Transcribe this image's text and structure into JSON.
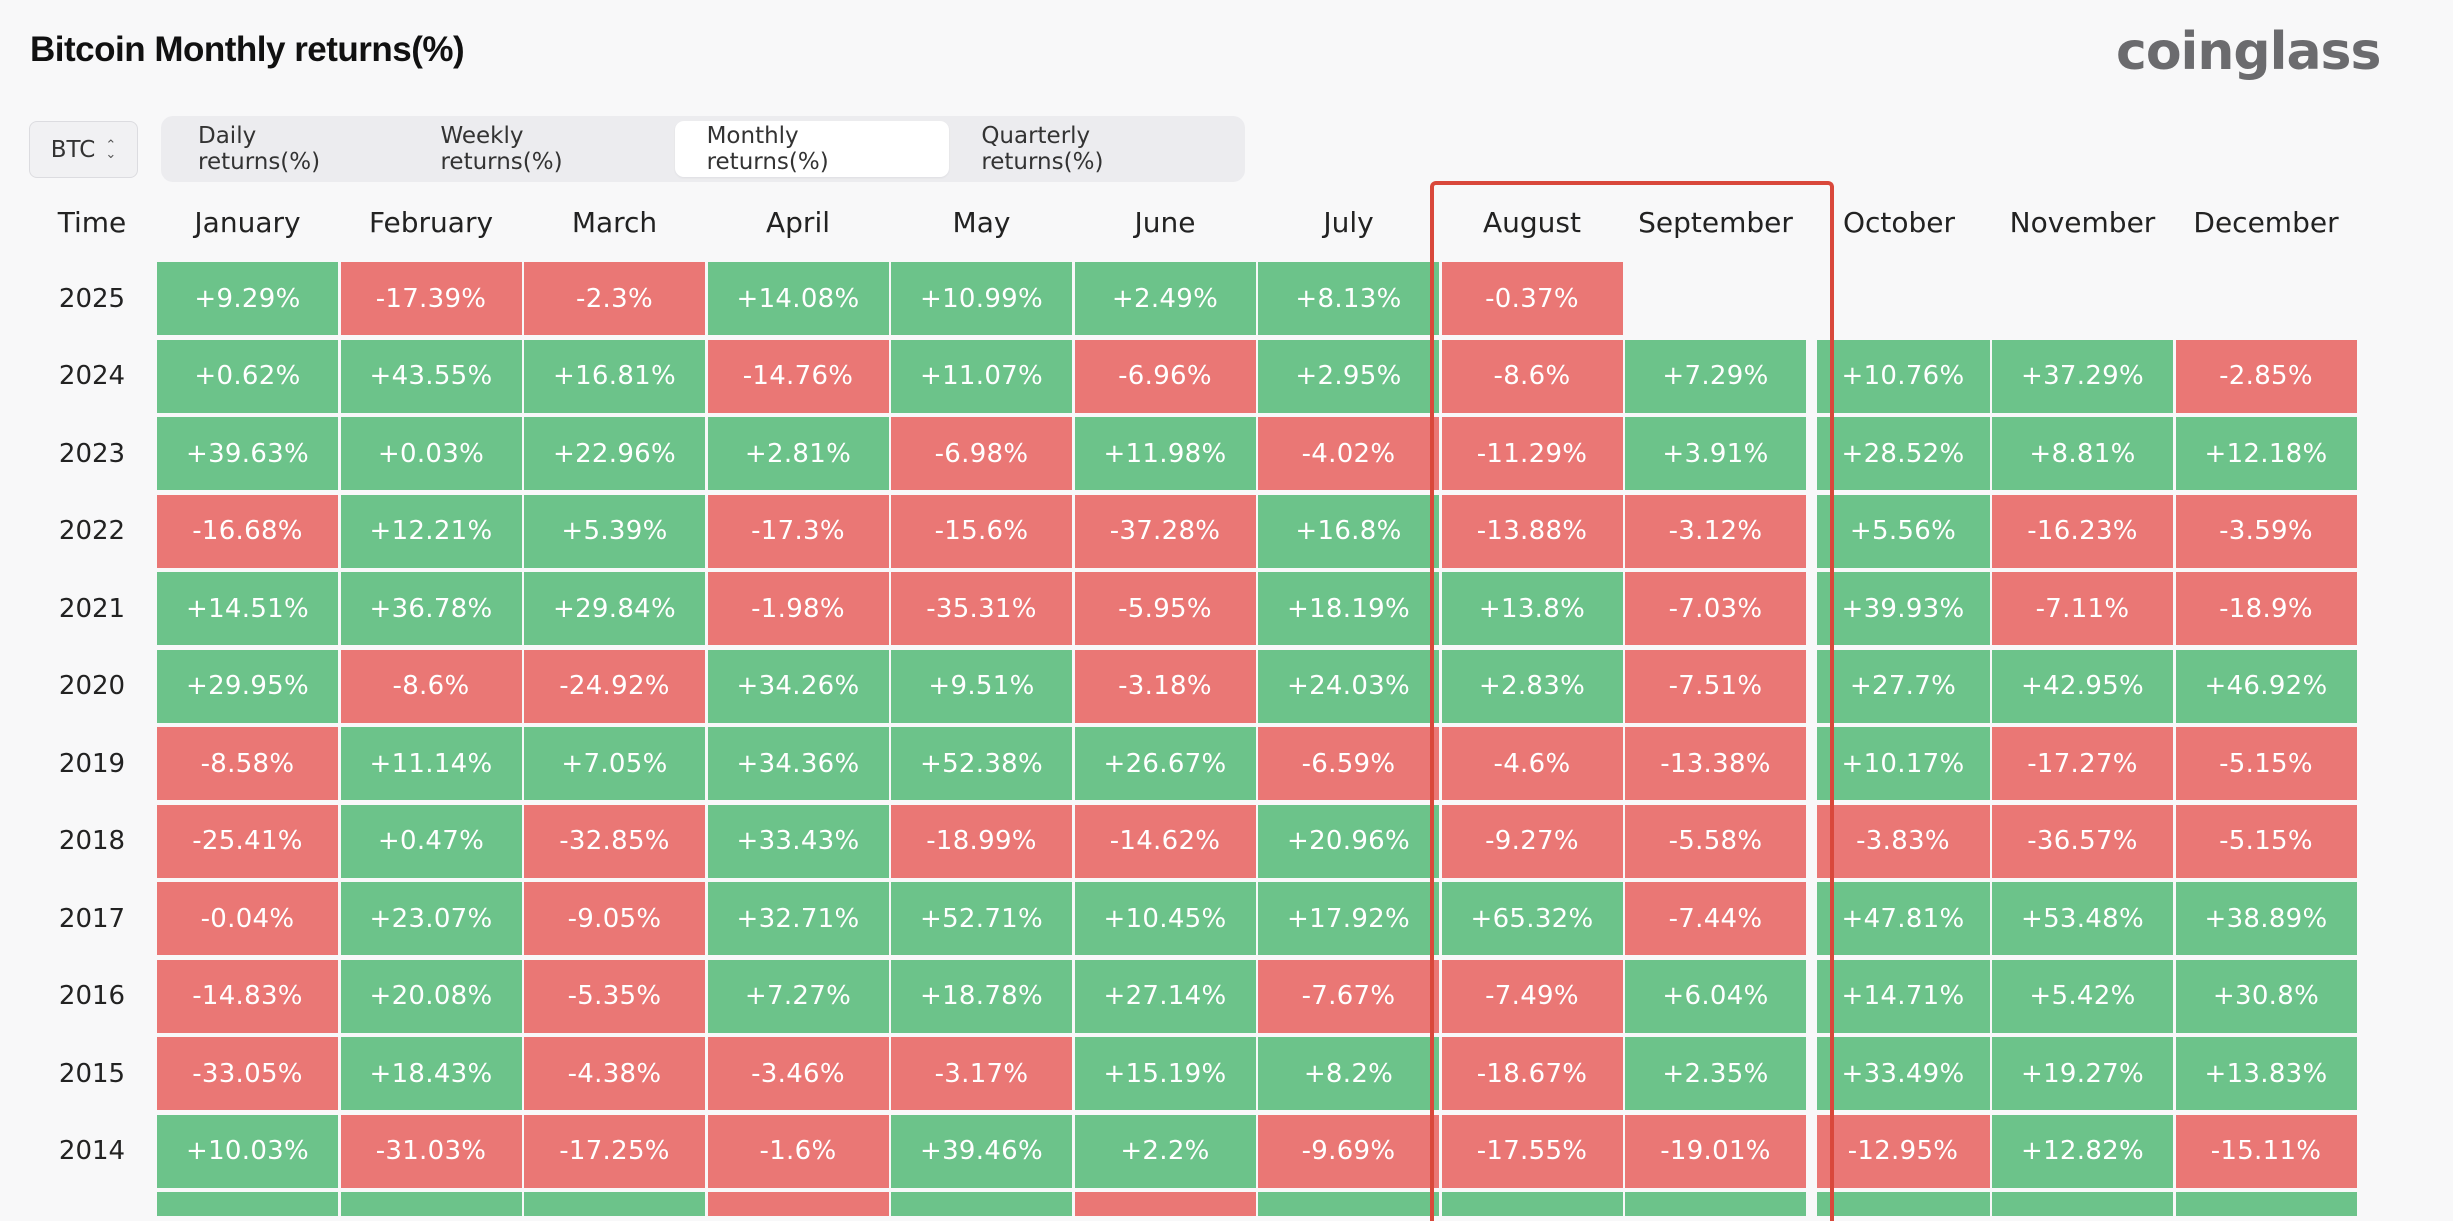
{
  "header": {
    "title": "Bitcoin Monthly returns(%)",
    "brand": "coinglass"
  },
  "asset_select": {
    "value": "BTC"
  },
  "tabs": [
    {
      "label": "Daily returns(%)",
      "active": false
    },
    {
      "label": "Weekly returns(%)",
      "active": false
    },
    {
      "label": "Monthly returns(%)",
      "active": true
    },
    {
      "label": "Quarterly returns(%)",
      "active": false
    }
  ],
  "table": {
    "time_label": "Time",
    "months": [
      "January",
      "February",
      "March",
      "April",
      "May",
      "June",
      "July",
      "August",
      "September",
      "October",
      "November",
      "December"
    ],
    "highlighted_months": [
      "August",
      "September"
    ],
    "rows": [
      {
        "year": "2025",
        "values": [
          "+9.29%",
          "-17.39%",
          "-2.3%",
          "+14.08%",
          "+10.99%",
          "+2.49%",
          "+8.13%",
          "-0.37%",
          "",
          "",
          "",
          ""
        ]
      },
      {
        "year": "2024",
        "values": [
          "+0.62%",
          "+43.55%",
          "+16.81%",
          "-14.76%",
          "+11.07%",
          "-6.96%",
          "+2.95%",
          "-8.6%",
          "+7.29%",
          "+10.76%",
          "+37.29%",
          "-2.85%"
        ]
      },
      {
        "year": "2023",
        "values": [
          "+39.63%",
          "+0.03%",
          "+22.96%",
          "+2.81%",
          "-6.98%",
          "+11.98%",
          "-4.02%",
          "-11.29%",
          "+3.91%",
          "+28.52%",
          "+8.81%",
          "+12.18%"
        ]
      },
      {
        "year": "2022",
        "values": [
          "-16.68%",
          "+12.21%",
          "+5.39%",
          "-17.3%",
          "-15.6%",
          "-37.28%",
          "+16.8%",
          "-13.88%",
          "-3.12%",
          "+5.56%",
          "-16.23%",
          "-3.59%"
        ]
      },
      {
        "year": "2021",
        "values": [
          "+14.51%",
          "+36.78%",
          "+29.84%",
          "-1.98%",
          "-35.31%",
          "-5.95%",
          "+18.19%",
          "+13.8%",
          "-7.03%",
          "+39.93%",
          "-7.11%",
          "-18.9%"
        ]
      },
      {
        "year": "2020",
        "values": [
          "+29.95%",
          "-8.6%",
          "-24.92%",
          "+34.26%",
          "+9.51%",
          "-3.18%",
          "+24.03%",
          "+2.83%",
          "-7.51%",
          "+27.7%",
          "+42.95%",
          "+46.92%"
        ]
      },
      {
        "year": "2019",
        "values": [
          "-8.58%",
          "+11.14%",
          "+7.05%",
          "+34.36%",
          "+52.38%",
          "+26.67%",
          "-6.59%",
          "-4.6%",
          "-13.38%",
          "+10.17%",
          "-17.27%",
          "-5.15%"
        ]
      },
      {
        "year": "2018",
        "values": [
          "-25.41%",
          "+0.47%",
          "-32.85%",
          "+33.43%",
          "-18.99%",
          "-14.62%",
          "+20.96%",
          "-9.27%",
          "-5.58%",
          "-3.83%",
          "-36.57%",
          "-5.15%"
        ]
      },
      {
        "year": "2017",
        "values": [
          "-0.04%",
          "+23.07%",
          "-9.05%",
          "+32.71%",
          "+52.71%",
          "+10.45%",
          "+17.92%",
          "+65.32%",
          "-7.44%",
          "+47.81%",
          "+53.48%",
          "+38.89%"
        ]
      },
      {
        "year": "2016",
        "values": [
          "-14.83%",
          "+20.08%",
          "-5.35%",
          "+7.27%",
          "+18.78%",
          "+27.14%",
          "-7.67%",
          "-7.49%",
          "+6.04%",
          "+14.71%",
          "+5.42%",
          "+30.8%"
        ]
      },
      {
        "year": "2015",
        "values": [
          "-33.05%",
          "+18.43%",
          "-4.38%",
          "-3.46%",
          "-3.17%",
          "+15.19%",
          "+8.2%",
          "-18.67%",
          "+2.35%",
          "+33.49%",
          "+19.27%",
          "+13.83%"
        ]
      },
      {
        "year": "2014",
        "values": [
          "+10.03%",
          "-31.03%",
          "-17.25%",
          "-1.6%",
          "+39.46%",
          "+2.2%",
          "-9.69%",
          "-17.55%",
          "-19.01%",
          "-12.95%",
          "+12.82%",
          "-15.11%"
        ]
      }
    ],
    "partial_row_colors": [
      "pos",
      "pos",
      "pos",
      "neg",
      "pos",
      "neg",
      "pos",
      "pos",
      "pos",
      "pos",
      "pos",
      "pos"
    ]
  },
  "colors": {
    "positive": "#6cc38a",
    "negative": "#ea7775",
    "highlight": "#d9483b"
  }
}
